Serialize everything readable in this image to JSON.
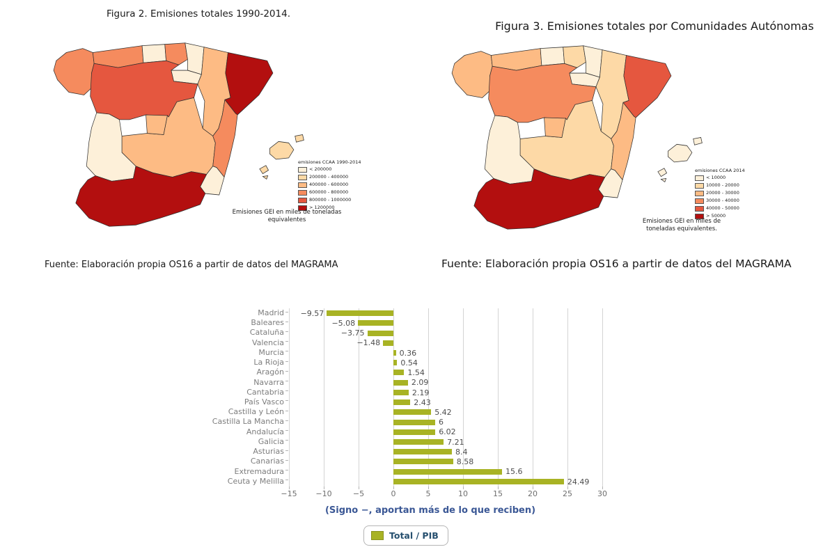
{
  "palette": [
    "#fdf0d9",
    "#fdd9a6",
    "#fdbb84",
    "#f58b5e",
    "#e5573f",
    "#b30f0f"
  ],
  "figure2": {
    "title": "Figura 2. Emisiones totales 1990-2014.",
    "legend_title": "emisiones CCAA 1990-2014",
    "legend_items": [
      "< 200000",
      "200000 - 400000",
      "400000 - 600000",
      "600000 - 800000",
      "800000 - 1000000",
      "> 1200000"
    ],
    "caption": "Emisiones GEI en miles de toneladas equivalentes",
    "source": "Fuente: Elaboración propia OS16 a partir de datos del MAGRAMA",
    "region_classes": {
      "galicia": 4,
      "asturias": 4,
      "cantabria": 1,
      "pais_vasco": 4,
      "navarra": 1,
      "la_rioja": 1,
      "castilla_leon": 5,
      "aragon": 3,
      "cataluna": 6,
      "castilla_la_mancha": 3,
      "madrid": 3,
      "valencia": 4,
      "murcia": 1,
      "extremadura": 1,
      "andalucia": 6,
      "mallorca": 2,
      "menorca": 2,
      "ibiza": 2,
      "formentera": 2
    }
  },
  "figure3": {
    "title": "Figura 3. Emisiones totales por Comunidades Autónomas",
    "legend_title": "emisiones CCAA 2014",
    "legend_items": [
      "< 10000",
      "10000 - 20000",
      "20000 - 30000",
      "30000 - 40000",
      "40000 - 50000",
      "> 50000"
    ],
    "caption": "Emisiones GEI en miles de toneladas equivalentes.",
    "source": "Fuente: Elaboración propia OS16 a partir de datos del MAGRAMA",
    "region_classes": {
      "galicia": 3,
      "asturias": 3,
      "cantabria": 1,
      "pais_vasco": 2,
      "navarra": 1,
      "la_rioja": 1,
      "castilla_leon": 4,
      "aragon": 2,
      "cataluna": 5,
      "castilla_la_mancha": 2,
      "madrid": 3,
      "valencia": 3,
      "murcia": 1,
      "extremadura": 1,
      "andalucia": 6,
      "mallorca": 1,
      "menorca": 1,
      "ibiza": 1,
      "formentera": 1
    }
  },
  "chart_data": {
    "type": "bar",
    "orientation": "horizontal",
    "title": "",
    "xlabel": "",
    "ylabel": "",
    "categories": [
      "Madrid",
      "Baleares",
      "Cataluña",
      "Valencia",
      "Murcia",
      "La Rioja",
      "Aragón",
      "Navarra",
      "Cantabria",
      "País Vasco",
      "Castilla y León",
      "Castilla La Mancha",
      "Andalucía",
      "Galicia",
      "Asturias",
      "Canarias",
      "Extremadura",
      "Ceuta y Melilla"
    ],
    "values": [
      -9.57,
      -5.08,
      -3.75,
      -1.48,
      0.36,
      0.54,
      1.54,
      2.09,
      2.19,
      2.43,
      5.42,
      6,
      6.02,
      7.21,
      8.4,
      8.58,
      15.6,
      24.49
    ],
    "value_labels": [
      "−9.57",
      "−5.08",
      "−3.75",
      "−1.48",
      "0.36",
      "0.54",
      "1.54",
      "2.09",
      "2.19",
      "2.43",
      "5.42",
      "6",
      "6.02",
      "7.21",
      "8.4",
      "8.58",
      "15.6",
      "24.49"
    ],
    "xlim": [
      -15,
      30
    ],
    "xticks": [
      -15,
      -10,
      -5,
      0,
      5,
      10,
      15,
      20,
      25,
      30
    ],
    "xtick_labels": [
      "−15",
      "−10",
      "−5",
      "0",
      "5",
      "10",
      "15",
      "20",
      "25",
      "30"
    ],
    "grid": true,
    "bar_color": "#a8b324",
    "note": "(Signo −, aportan más de lo que reciben)",
    "legend": {
      "label": "Total / PIB",
      "series_color": "#a8b324",
      "position": "bottom"
    }
  }
}
